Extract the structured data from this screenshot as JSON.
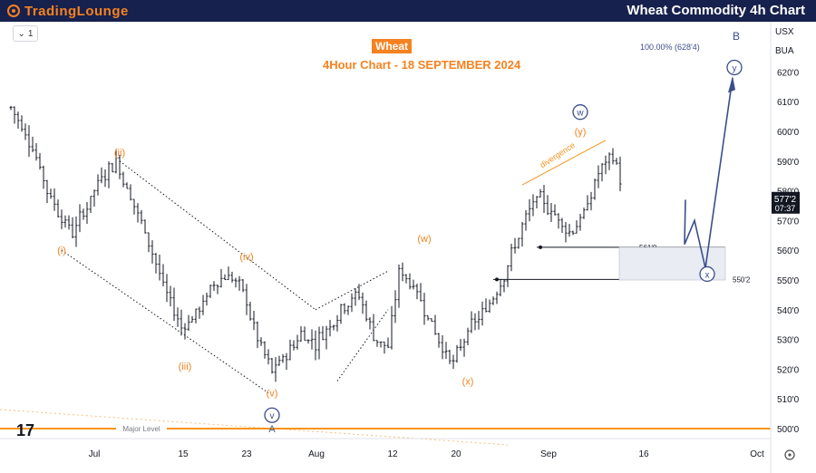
{
  "header": {
    "logo": "TradingLounge",
    "title": "Wheat Commodity 4h Chart"
  },
  "toolbar": {
    "interval": "1",
    "currency_1": "USX",
    "currency_2": "BUA"
  },
  "chart_data": {
    "type": "candlestick",
    "title": "Wheat",
    "subtitle": "4Hour Chart - 18 SEPTEMBER 2024",
    "x_tick_labels": [
      "Jul",
      "15",
      "23",
      "Aug",
      "12",
      "20",
      "Sep",
      "16",
      "Oct"
    ],
    "y_tick_labels": [
      "500'0",
      "510'0",
      "520'0",
      "530'0",
      "540'0",
      "550'0",
      "560'0",
      "570'0",
      "580'0",
      "590'0",
      "600'0",
      "610'0",
      "620'0"
    ],
    "ylim": [
      497,
      630
    ],
    "last_price": "577'2",
    "countdown": "07:37",
    "price_path": [
      [
        0,
        608
      ],
      [
        6,
        595
      ],
      [
        10,
        580
      ],
      [
        14,
        571
      ],
      [
        17,
        566
      ],
      [
        21,
        575
      ],
      [
        25,
        585
      ],
      [
        29,
        590
      ],
      [
        33,
        578
      ],
      [
        38,
        563
      ],
      [
        42,
        548
      ],
      [
        47,
        534
      ],
      [
        52,
        540
      ],
      [
        56,
        549
      ],
      [
        60,
        552
      ],
      [
        64,
        546
      ],
      [
        68,
        530
      ],
      [
        72,
        519
      ],
      [
        76,
        525
      ],
      [
        80,
        532
      ],
      [
        84,
        529
      ],
      [
        88,
        535
      ],
      [
        92,
        542
      ],
      [
        96,
        545
      ],
      [
        100,
        531
      ],
      [
        104,
        527
      ],
      [
        107,
        553
      ],
      [
        111,
        548
      ],
      [
        115,
        538
      ],
      [
        119,
        527
      ],
      [
        122,
        522
      ],
      [
        126,
        533
      ],
      [
        131,
        540
      ],
      [
        136,
        552
      ],
      [
        141,
        568
      ],
      [
        145,
        578
      ],
      [
        150,
        572
      ],
      [
        154,
        566
      ],
      [
        158,
        572
      ],
      [
        162,
        586
      ],
      [
        166,
        592
      ],
      [
        168,
        584
      ]
    ],
    "annotations": [
      {
        "label": "(i)",
        "x": 14,
        "price": 560,
        "color": "#f58220"
      },
      {
        "label": "(ii)",
        "x": 30,
        "price": 593,
        "color": "#f58220"
      },
      {
        "label": "(iii)",
        "x": 48,
        "price": 521,
        "color": "#f58220"
      },
      {
        "label": "(iv)",
        "x": 65,
        "price": 558,
        "color": "#f58220"
      },
      {
        "label": "(v)",
        "x": 72,
        "price": 512,
        "color": "#f58220"
      },
      {
        "label": "(w)",
        "x": 114,
        "price": 564,
        "color": "#f58220"
      },
      {
        "label": "(x)",
        "x": 126,
        "price": 516,
        "color": "#f58220"
      },
      {
        "label": "(y)",
        "x": 157,
        "price": 600,
        "color": "#f58220"
      },
      {
        "label": "A",
        "x": 72,
        "price": 500,
        "color": "#4a5a80"
      }
    ],
    "circled_labels": [
      {
        "label": "v",
        "x": 72,
        "price": 504.5
      },
      {
        "label": "w",
        "x": 157,
        "price": 606.5
      },
      {
        "label": "x",
        "x": 174,
        "price": 552
      },
      {
        "label": "y",
        "x": 181,
        "price": 621.5
      }
    ],
    "wave_b_label": "B",
    "target_label": "100.00% (628'4)",
    "target_price": 628.4,
    "divergence_label": "divergence",
    "levels": [
      {
        "label": "561'0",
        "price": 561
      },
      {
        "label": "550'2",
        "price": 550.2
      },
      {
        "label": "Major Level",
        "price": 500
      }
    ],
    "zone": {
      "top": 561,
      "bottom": 550
    }
  }
}
